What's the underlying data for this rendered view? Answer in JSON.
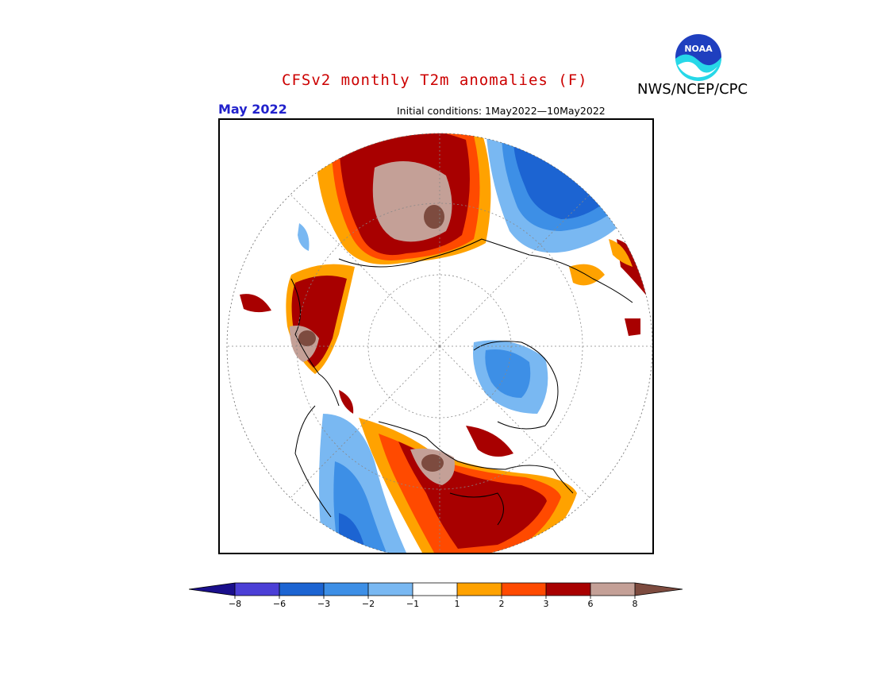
{
  "header": {
    "title": "CFSv2 monthly T2m anomalies (F)",
    "agency": "NWS/NCEP/CPC",
    "logo_text": "NOAA",
    "month": "May 2022",
    "initial_conditions": "Initial conditions: 1May2022—10May2022"
  },
  "map": {
    "projection": "north polar stereographic",
    "variable": "2m temperature anomaly",
    "units": "F"
  },
  "legend": {
    "tick_labels": [
      "−8",
      "−6",
      "−3",
      "−2",
      "−1",
      "1",
      "2",
      "3",
      "6",
      "8"
    ],
    "colors": {
      "lt_m8": "#1a0f8c",
      "m8_m6": "#4b3fd6",
      "m6_m3": "#1c64d2",
      "m3_m2": "#3d8fe6",
      "m2_m1": "#79b8f2",
      "m1_1": "#ffffff",
      "1_2": "#ffa200",
      "2_3": "#ff4a00",
      "3_6": "#a80000",
      "6_8": "#c4a097",
      "gt_8": "#7d4b3f"
    }
  }
}
